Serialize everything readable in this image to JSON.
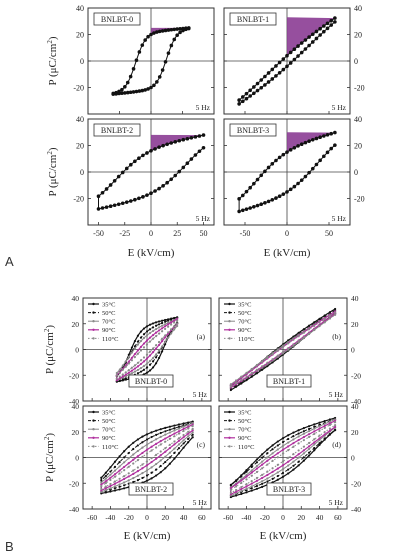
{
  "figure": {
    "panel_a_letter": "A",
    "panel_b_letter": "B"
  },
  "colors": {
    "loop_black": "#111111",
    "energy_fill": "#8b3c93",
    "loop_magenta": "#b0309e",
    "loop_grey": "#8a8a8a",
    "frame": "#333333"
  },
  "chart_data": [
    {
      "type": "scatter",
      "panel": "A",
      "grid": "2x2",
      "xlabel": "E (kV/cm)",
      "ylabel": "P (μC/cm²)",
      "ylabel_parts": {
        "pre": "P (μC/cm",
        "sup": "2",
        "post": ")"
      },
      "ylim": [
        -40,
        40
      ],
      "yticks": [
        "-20",
        "0",
        "20",
        "40"
      ],
      "frequency_label": "5 Hz",
      "subplots": [
        {
          "label": "BNLBT-0",
          "xlim": [
            -50,
            50
          ],
          "xticks": [
            "-50",
            "-25",
            "0",
            "25",
            "50"
          ],
          "series": [
            {
              "emax": 30,
              "pmax": 25,
              "ps": 22,
              "pr": 20
            }
          ]
        },
        {
          "label": "BNLBT-1",
          "xlim": [
            -75,
            75
          ],
          "xticks": [
            "-50",
            "0",
            "50"
          ],
          "series": [
            {
              "emax": 57,
              "pmax": 33,
              "ps": 9,
              "pr": 4
            }
          ]
        },
        {
          "label": "BNLBT-2",
          "xlim": [
            -60,
            60
          ],
          "xticks": [
            "-50",
            "-25",
            "0",
            "25",
            "50"
          ],
          "series": [
            {
              "emax": 50,
              "pmax": 28,
              "ps": 20,
              "pr": 16
            }
          ]
        },
        {
          "label": "BNLBT-3",
          "xlim": [
            -75,
            75
          ],
          "xticks": [
            "-50",
            "0",
            "50"
          ],
          "series": [
            {
              "emax": 57,
              "pmax": 30,
              "ps": 20,
              "pr": 15
            }
          ]
        }
      ]
    },
    {
      "type": "line",
      "panel": "B",
      "grid": "2x2",
      "xlabel": "E (kV/cm)",
      "ylabel": "P (μC/cm²)",
      "ylabel_parts": {
        "pre": "P (μC/cm",
        "sup": "2",
        "post": ")"
      },
      "xlim": [
        -70,
        70
      ],
      "xticks": [
        "-60",
        "-40",
        "-20",
        "0",
        "20",
        "40",
        "60"
      ],
      "ylim": [
        -40,
        40
      ],
      "yticks": [
        "-40",
        "-20",
        "0",
        "20",
        "40"
      ],
      "frequency_label": "5 Hz",
      "legend_entries": [
        "35°C",
        "50°C",
        "70°C",
        "90°C",
        "110°C"
      ],
      "subplots": [
        {
          "label": "BNLBT-0",
          "tag": "(a)",
          "series": [
            {
              "name": "35°C",
              "emax": 33,
              "pmax": 25,
              "ps": 20,
              "pr": 18
            },
            {
              "name": "50°C",
              "emax": 33,
              "pmax": 25,
              "ps": 17,
              "pr": 14
            },
            {
              "name": "70°C",
              "emax": 33,
              "pmax": 24,
              "ps": 14,
              "pr": 11
            },
            {
              "name": "90°C",
              "emax": 33,
              "pmax": 24,
              "ps": 11,
              "pr": 7
            },
            {
              "name": "110°C",
              "emax": 33,
              "pmax": 23,
              "ps": 8,
              "pr": 4
            }
          ]
        },
        {
          "label": "BNLBT-1",
          "tag": "(b)",
          "series": [
            {
              "name": "35°C",
              "emax": 57,
              "pmax": 32,
              "ps": 8,
              "pr": 4
            },
            {
              "name": "50°C",
              "emax": 57,
              "pmax": 31,
              "ps": 7,
              "pr": 3
            },
            {
              "name": "70°C",
              "emax": 57,
              "pmax": 30,
              "ps": 6,
              "pr": 3
            },
            {
              "name": "90°C",
              "emax": 57,
              "pmax": 30,
              "ps": 5,
              "pr": 2
            },
            {
              "name": "110°C",
              "emax": 57,
              "pmax": 29,
              "ps": 4,
              "pr": 2
            }
          ]
        },
        {
          "label": "BNLBT-2",
          "tag": "(c)",
          "series": [
            {
              "name": "35°C",
              "emax": 50,
              "pmax": 28,
              "ps": 21,
              "pr": 18
            },
            {
              "name": "50°C",
              "emax": 50,
              "pmax": 27,
              "ps": 18,
              "pr": 14
            },
            {
              "name": "70°C",
              "emax": 50,
              "pmax": 27,
              "ps": 14,
              "pr": 10
            },
            {
              "name": "90°C",
              "emax": 50,
              "pmax": 26,
              "ps": 10,
              "pr": 6
            },
            {
              "name": "110°C",
              "emax": 50,
              "pmax": 25,
              "ps": 7,
              "pr": 3
            }
          ]
        },
        {
          "label": "BNLBT-3",
          "tag": "(d)",
          "series": [
            {
              "name": "35°C",
              "emax": 57,
              "pmax": 31,
              "ps": 20,
              "pr": 15
            },
            {
              "name": "50°C",
              "emax": 57,
              "pmax": 30,
              "ps": 17,
              "pr": 12
            },
            {
              "name": "70°C",
              "emax": 57,
              "pmax": 30,
              "ps": 14,
              "pr": 9
            },
            {
              "name": "90°C",
              "emax": 57,
              "pmax": 29,
              "ps": 10,
              "pr": 6
            },
            {
              "name": "110°C",
              "emax": 57,
              "pmax": 28,
              "ps": 7,
              "pr": 3
            }
          ]
        }
      ]
    }
  ]
}
